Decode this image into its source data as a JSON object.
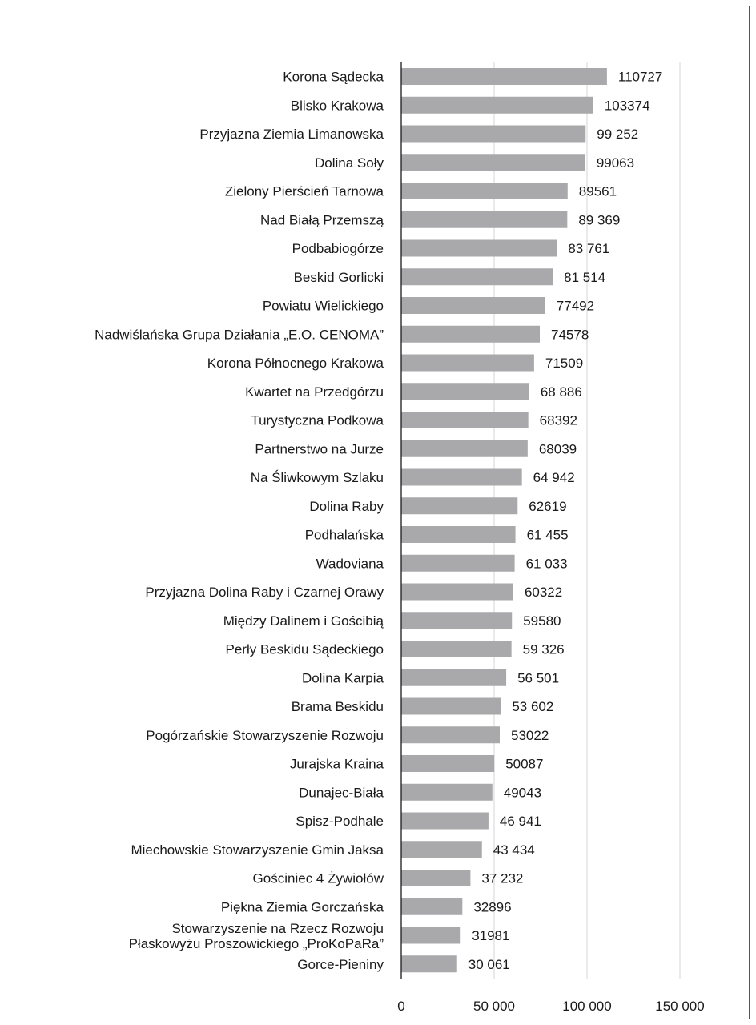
{
  "chart_data": {
    "type": "bar",
    "orientation": "horizontal",
    "categories": [
      "Korona Sądecka",
      "Blisko Krakowa",
      "Przyjazna Ziemia Limanowska",
      "Dolina Soły",
      "Zielony Pierścień Tarnowa",
      "Nad Białą Przemszą",
      "Podbabiogórze",
      "Beskid Gorlicki",
      "Powiatu Wielickiego",
      "Nadwiślańska Grupa Działania „E.O. CENOMA”",
      "Korona Północnego Krakowa",
      "Kwartet na Przedgórzu",
      "Turystyczna Podkowa",
      "Partnerstwo na Jurze",
      "Na Śliwkowym Szlaku",
      "Dolina Raby",
      "Podhalańska",
      "Wadoviana",
      "Przyjazna Dolina Raby i Czarnej Orawy",
      "Między Dalinem i Gościbią",
      "Perły Beskidu Sądeckiego",
      "Dolina Karpia",
      "Brama Beskidu",
      "Pogórzańskie Stowarzyszenie Rozwoju",
      "Jurajska Kraina",
      "Dunajec-Biała",
      "Spisz-Podhale",
      "Miechowskie Stowarzyszenie Gmin Jaksa",
      "Gościniec 4 Żywiołów",
      "Piękna Ziemia Gorczańska",
      "Stowarzyszenie na Rzecz Rozwoju Płaskowyżu Proszowickiego „ProKoPaRa”",
      "Gorce-Pieniny"
    ],
    "category_lines": [
      [
        "Korona Sądecka"
      ],
      [
        "Blisko Krakowa"
      ],
      [
        "Przyjazna Ziemia Limanowska"
      ],
      [
        "Dolina Soły"
      ],
      [
        "Zielony Pierścień Tarnowa"
      ],
      [
        "Nad Białą Przemszą"
      ],
      [
        "Podbabiogórze"
      ],
      [
        "Beskid Gorlicki"
      ],
      [
        "Powiatu Wielickiego"
      ],
      [
        "Nadwiślańska Grupa Działania „E.O. CENOMA”"
      ],
      [
        "Korona Północnego Krakowa"
      ],
      [
        "Kwartet na Przedgórzu"
      ],
      [
        "Turystyczna Podkowa"
      ],
      [
        "Partnerstwo na Jurze"
      ],
      [
        "Na Śliwkowym Szlaku"
      ],
      [
        "Dolina Raby"
      ],
      [
        "Podhalańska"
      ],
      [
        "Wadoviana"
      ],
      [
        "Przyjazna Dolina Raby i Czarnej Orawy"
      ],
      [
        "Między Dalinem i Gościbią"
      ],
      [
        "Perły Beskidu Sądeckiego"
      ],
      [
        "Dolina Karpia"
      ],
      [
        "Brama Beskidu"
      ],
      [
        "Pogórzańskie Stowarzyszenie Rozwoju"
      ],
      [
        "Jurajska Kraina"
      ],
      [
        "Dunajec-Biała"
      ],
      [
        "Spisz-Podhale"
      ],
      [
        "Miechowskie Stowarzyszenie Gmin Jaksa"
      ],
      [
        "Gościniec 4 Żywiołów"
      ],
      [
        "Piękna Ziemia Gorczańska"
      ],
      [
        "Stowarzyszenie na Rzecz Rozwoju",
        "Płaskowyżu Proszowickiego „ProKoPaRa”"
      ],
      [
        "Gorce-Pieniny"
      ]
    ],
    "values": [
      110727,
      103374,
      99252,
      99063,
      89561,
      89369,
      83761,
      81514,
      77492,
      74578,
      71509,
      68886,
      68392,
      68039,
      64942,
      62619,
      61455,
      61033,
      60322,
      59580,
      59326,
      56501,
      53602,
      53022,
      50087,
      49043,
      46941,
      43434,
      37232,
      32896,
      31981,
      30061
    ],
    "data_labels": [
      "110727",
      "103374",
      "99 252",
      "99063",
      "89561",
      "89 369",
      "83 761",
      "81 514",
      "77492",
      "74578",
      "71509",
      "68 886",
      "68392",
      "68039",
      "64 942",
      "62619",
      "61 455",
      "61 033",
      "60322",
      "59580",
      "59 326",
      "56 501",
      "53 602",
      "53022",
      "50087",
      "49043",
      "46 941",
      "43 434",
      "37 232",
      "32896",
      "31981",
      "30 061"
    ],
    "xticks": [
      0,
      50000,
      100000,
      150000
    ],
    "xtick_labels": [
      "0",
      "50 000",
      "100 000",
      "150 000"
    ],
    "xlim": [
      0,
      150000
    ],
    "title": "",
    "xlabel": "",
    "ylabel": "",
    "grid": "vertical",
    "legend": "none",
    "bar_color": "#a9a9ab",
    "grid_color": "#d4d4d4",
    "axis_color": "#1a1a1a"
  }
}
